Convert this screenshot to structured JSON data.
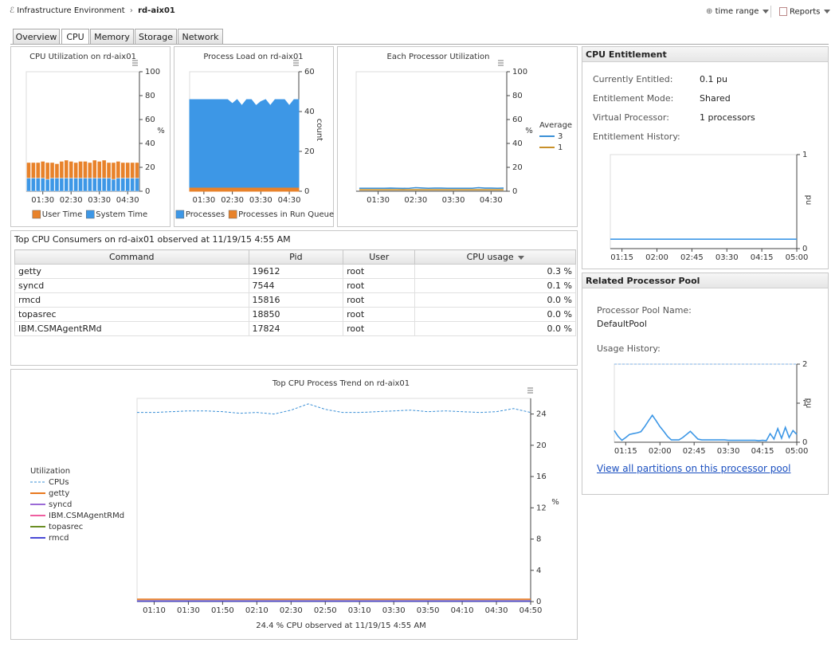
{
  "header": {
    "breadcrumb_root": "Infrastructure Environment",
    "breadcrumb_current": "rd-aix01",
    "time_range": "time range",
    "reports": "Reports"
  },
  "tabs": [
    "Overview",
    "CPU",
    "Memory",
    "Storage",
    "Network"
  ],
  "active_tab": 1,
  "chart_data": [
    {
      "type": "bar",
      "stacked": true,
      "title": "CPU Utilization on rd-aix01",
      "y_label": "%",
      "categories": [
        null,
        null,
        null,
        "01:30",
        null,
        null,
        null,
        null,
        null,
        "02:30",
        null,
        null,
        null,
        null,
        null,
        "03:30",
        null,
        null,
        null,
        null,
        null,
        "04:30",
        null,
        null
      ],
      "series": [
        {
          "name": "User Time",
          "color": "#e8822a",
          "values": [
            13,
            13,
            13,
            14,
            14,
            13,
            12,
            14,
            15,
            14,
            13,
            14,
            14,
            13,
            15,
            14,
            15,
            13,
            14,
            14,
            13,
            13,
            13,
            13
          ]
        },
        {
          "name": "System Time",
          "color": "#3d97e6",
          "values": [
            11,
            11,
            11,
            11,
            10,
            11,
            11,
            11,
            11,
            11,
            11,
            11,
            11,
            11,
            11,
            11,
            11,
            11,
            10,
            11,
            11,
            11,
            11,
            11
          ]
        }
      ],
      "ylim": [
        0,
        100
      ],
      "yticks": [
        0,
        20,
        40,
        60,
        80,
        100
      ],
      "grid": false
    },
    {
      "type": "area",
      "stacked": true,
      "title": "Process Load on rd-aix01",
      "y_label": "count",
      "categories": [
        null,
        null,
        null,
        "01:30",
        null,
        null,
        null,
        null,
        null,
        "02:30",
        null,
        null,
        null,
        null,
        null,
        "03:30",
        null,
        null,
        null,
        null,
        null,
        "04:30",
        null,
        null
      ],
      "series": [
        {
          "name": "Processes",
          "color": "#3d97e6",
          "values": [
            44,
            44,
            44,
            44,
            44,
            44,
            44,
            44,
            44,
            42,
            44,
            41,
            44,
            44,
            41,
            43,
            44,
            41,
            44,
            44,
            44,
            41,
            44,
            44
          ]
        },
        {
          "name": "Processes in Run Queue",
          "color": "#e8822a",
          "values": [
            2,
            2,
            2,
            2,
            2,
            2,
            2,
            2,
            2,
            2,
            2,
            2,
            2,
            2,
            2,
            2,
            2,
            2,
            2,
            2,
            2,
            2,
            2,
            2
          ]
        }
      ],
      "ylim": [
        0,
        60
      ],
      "yticks": [
        0,
        20,
        40,
        60
      ],
      "grid": false
    },
    {
      "type": "line",
      "title": "Each Processor Utilization",
      "y_label": "%",
      "legend_title": "Average",
      "categories": [
        null,
        null,
        null,
        "01:30",
        null,
        null,
        null,
        null,
        null,
        "02:30",
        null,
        null,
        null,
        null,
        null,
        "03:30",
        null,
        null,
        null,
        null,
        null,
        "04:30",
        null,
        null
      ],
      "series": [
        {
          "name": "3",
          "color": "#3a8fd6",
          "values": [
            2.5,
            2.5,
            2.5,
            2.5,
            2.5,
            2.6,
            2.5,
            2.4,
            2.5,
            3,
            2.7,
            2.5,
            2.6,
            2.6,
            2.5,
            2.5,
            2.5,
            2.5,
            2.5,
            3,
            2.6,
            2.6,
            2.5,
            2.6
          ]
        },
        {
          "name": "1",
          "color": "#c8902a",
          "values": [
            1.2,
            1.2,
            1.2,
            1.2,
            1.2,
            1.2,
            1.2,
            1.2,
            1.2,
            1.2,
            1.2,
            1.2,
            1.2,
            1.2,
            1.2,
            1.2,
            1.2,
            1.2,
            1.2,
            1.2,
            1.2,
            1.2,
            1.2,
            1.2
          ]
        }
      ],
      "ylim": [
        0,
        100
      ],
      "yticks": [
        0,
        20,
        40,
        60,
        80,
        100
      ],
      "grid": false
    },
    {
      "type": "line",
      "y_label": "pu",
      "categories": [
        null,
        "01:15",
        null,
        null,
        "02:00",
        null,
        null,
        "02:45",
        null,
        null,
        "03:30",
        null,
        null,
        "04:15",
        null,
        null,
        "05:00"
      ],
      "values": [
        0.1,
        0.1,
        0.1,
        0.1,
        0.1,
        0.1,
        0.1,
        0.1,
        0.1,
        0.1,
        0.1,
        0.1,
        0.1,
        0.1,
        0.1,
        0.1,
        0.1
      ],
      "color": "#3d97e6",
      "ylim": [
        0,
        1
      ],
      "yticks": [
        0,
        1
      ],
      "grid": false
    },
    {
      "type": "line",
      "y_label": "pu",
      "categories": [
        null,
        null,
        null,
        "01:15",
        null,
        null,
        null,
        null,
        null,
        null,
        null,
        null,
        "02:00",
        null,
        null,
        null,
        null,
        null,
        null,
        null,
        null,
        "02:45",
        null,
        null,
        null,
        null,
        null,
        null,
        null,
        null,
        "03:30",
        null,
        null,
        null,
        null,
        null,
        null,
        null,
        null,
        "04:15",
        null,
        null,
        null,
        null,
        null,
        null,
        null,
        null,
        "05:00"
      ],
      "values": [
        0.3,
        0.15,
        0.05,
        0.12,
        0.2,
        0.22,
        0.24,
        0.27,
        0.4,
        0.55,
        0.69,
        0.55,
        0.4,
        0.28,
        0.15,
        0.06,
        0.06,
        0.06,
        0.12,
        0.2,
        0.28,
        0.18,
        0.08,
        0.06,
        0.06,
        0.06,
        0.06,
        0.06,
        0.06,
        0.06,
        0.05,
        0.05,
        0.05,
        0.05,
        0.05,
        0.05,
        0.05,
        0.05,
        0.04,
        0.05,
        0.04,
        0.22,
        0.08,
        0.35,
        0.1,
        0.38,
        0.12,
        0.3,
        0.2
      ],
      "color": "#3d97e6",
      "ylim": [
        0,
        2
      ],
      "yticks": [
        0,
        1,
        2
      ],
      "grid": false
    },
    {
      "type": "line",
      "title": "Top CPU Process Trend on rd-aix01",
      "y_label": "%",
      "legend_title": "Utilization",
      "footer": "24.4 % CPU observed at 11/19/15 4:55 AM",
      "categories": [
        null,
        "01:10",
        null,
        "01:30",
        null,
        "01:50",
        null,
        "02:10",
        null,
        "02:30",
        null,
        "02:50",
        null,
        "03:10",
        null,
        "03:30",
        null,
        "03:50",
        null,
        "04:10",
        null,
        "04:30",
        null,
        "04:50"
      ],
      "series": [
        {
          "name": "CPUs",
          "color": "#3a8fd6",
          "dash": true,
          "values": [
            24.2,
            24.2,
            24.3,
            24.4,
            24.4,
            24.3,
            24.1,
            24.2,
            24.0,
            24.5,
            25.3,
            24.6,
            24.2,
            24.2,
            24.3,
            24.4,
            24.5,
            24.3,
            24.4,
            24.3,
            24.2,
            24.3,
            24.7,
            24.2
          ]
        },
        {
          "name": "getty",
          "color": "#e8781e",
          "values": [
            0.3,
            0.3,
            0.3,
            0.3,
            0.3,
            0.3,
            0.3,
            0.3,
            0.3,
            0.3,
            0.3,
            0.3,
            0.3,
            0.3,
            0.3,
            0.3,
            0.3,
            0.3,
            0.3,
            0.3,
            0.3,
            0.3,
            0.3,
            0.3
          ]
        },
        {
          "name": "syncd",
          "color": "#9b6ad6",
          "values": [
            0.1,
            0.1,
            0.1,
            0.1,
            0.1,
            0.1,
            0.1,
            0.1,
            0.1,
            0.1,
            0.1,
            0.1,
            0.1,
            0.1,
            0.1,
            0.1,
            0.1,
            0.1,
            0.1,
            0.1,
            0.1,
            0.1,
            0.1,
            0.1
          ]
        },
        {
          "name": "IBM.CSMAgentRMd",
          "color": "#ef5ea0",
          "values": [
            0.05,
            0.05,
            0.05,
            0.05,
            0.05,
            0.05,
            0.05,
            0.05,
            0.05,
            0.05,
            0.05,
            0.05,
            0.05,
            0.05,
            0.05,
            0.05,
            0.05,
            0.05,
            0.05,
            0.05,
            0.05,
            0.05,
            0.05,
            0.05
          ]
        },
        {
          "name": "topasrec",
          "color": "#6b8e23",
          "values": [
            0.05,
            0.05,
            0.05,
            0.05,
            0.05,
            0.05,
            0.05,
            0.05,
            0.05,
            0.05,
            0.05,
            0.05,
            0.05,
            0.05,
            0.05,
            0.05,
            0.05,
            0.05,
            0.05,
            0.05,
            0.05,
            0.05,
            0.05,
            0.05
          ]
        },
        {
          "name": "rmcd",
          "color": "#4a4ad6",
          "values": [
            0.05,
            0.05,
            0.05,
            0.05,
            0.05,
            0.05,
            0.05,
            0.05,
            0.05,
            0.05,
            0.05,
            0.05,
            0.05,
            0.05,
            0.05,
            0.05,
            0.05,
            0.05,
            0.05,
            0.05,
            0.05,
            0.05,
            0.05,
            0.05
          ]
        }
      ],
      "ylim": [
        0,
        26
      ],
      "yticks": [
        0,
        4,
        8,
        12,
        16,
        20,
        24
      ],
      "grid": false
    }
  ],
  "table": {
    "title": "Top CPU Consumers on rd-aix01 observed at 11/19/15 4:55 AM",
    "columns": [
      "Command",
      "Pid",
      "User",
      "CPU usage"
    ],
    "rows": [
      [
        "getty",
        "19612",
        "root",
        "0.3 %"
      ],
      [
        "syncd",
        "7544",
        "root",
        "0.1 %"
      ],
      [
        "rmcd",
        "15816",
        "root",
        "0.0 %"
      ],
      [
        "topasrec",
        "18850",
        "root",
        "0.0 %"
      ],
      [
        "IBM.CSMAgentRMd",
        "17824",
        "root",
        "0.0 %"
      ]
    ]
  },
  "entitlement": {
    "title": "CPU Entitlement",
    "fields": [
      {
        "label": "Currently Entitled:",
        "value": "0.1 pu"
      },
      {
        "label": "Entitlement Mode:",
        "value": "Shared"
      },
      {
        "label": "Virtual Processor:",
        "value": "1 processors"
      }
    ],
    "history_label": "Entitlement History:"
  },
  "pool": {
    "title": "Related Processor Pool",
    "name_label": "Processor Pool Name:",
    "name": "DefaultPool",
    "history_label": "Usage History:",
    "link": "View all partitions on this processor pool"
  }
}
